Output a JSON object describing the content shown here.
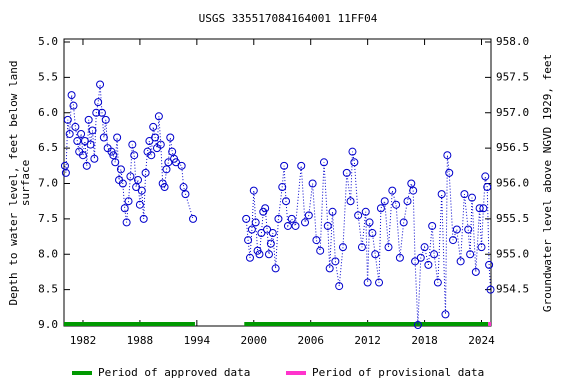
{
  "chart_data": {
    "type": "scatter",
    "title": "USGS 335517084164001 11FF04",
    "ylabel": [
      "Depth to water level, feet below land",
      "surface"
    ],
    "y2label": "Groundwater level above NGVD 1929, feet",
    "color": "#0000cc",
    "marker": "circle",
    "line_style": "dotted",
    "xlim": [
      1980,
      2025
    ],
    "xticks": [
      1982,
      1988,
      1994,
      2000,
      2006,
      2012,
      2018,
      2024
    ],
    "ylim": [
      5,
      9
    ],
    "y_inverted": true,
    "yticks": [
      {
        "value": 5,
        "label": "5.0"
      },
      {
        "value": 5.5,
        "label": "5.5"
      },
      {
        "value": 6,
        "label": "6.0"
      },
      {
        "value": 6.5,
        "label": "6.5"
      },
      {
        "value": 7,
        "label": "7.0"
      },
      {
        "value": 7.5,
        "label": "7.5"
      },
      {
        "value": 8,
        "label": "8.0"
      },
      {
        "value": 8.5,
        "label": "8.5"
      },
      {
        "value": 9,
        "label": "9.0"
      }
    ],
    "y2lim": [
      958,
      954
    ],
    "y2ticks": [
      {
        "value": 958,
        "label": "958.0"
      },
      {
        "value": 957.5,
        "label": "957.5"
      },
      {
        "value": 957,
        "label": "957.0"
      },
      {
        "value": 956.5,
        "label": "956.5"
      },
      {
        "value": 956,
        "label": "956.0"
      },
      {
        "value": 955.5,
        "label": "955.5"
      },
      {
        "value": 955,
        "label": "955.0"
      },
      {
        "value": 954.5,
        "label": "954.5"
      }
    ],
    "x": [
      1980.1,
      1980.2,
      1980.4,
      1980.6,
      1980.8,
      1981.0,
      1981.2,
      1981.4,
      1981.6,
      1981.8,
      1982.0,
      1982.2,
      1982.4,
      1982.6,
      1982.8,
      1983.0,
      1983.2,
      1983.4,
      1983.6,
      1983.8,
      1984.0,
      1984.2,
      1984.4,
      1984.6,
      1985.0,
      1985.2,
      1985.4,
      1985.6,
      1985.8,
      1986.0,
      1986.2,
      1986.4,
      1986.6,
      1986.8,
      1987.0,
      1987.2,
      1987.4,
      1987.6,
      1987.8,
      1988.0,
      1988.2,
      1988.4,
      1988.6,
      1988.8,
      1989.0,
      1989.2,
      1989.4,
      1989.6,
      1989.8,
      1990.0,
      1990.2,
      1990.4,
      1990.6,
      1990.8,
      1991.0,
      1991.2,
      1991.4,
      1991.6,
      1991.8,
      1992.4,
      1992.6,
      1992.8,
      1993.6,
      null,
      1999.2,
      1999.4,
      1999.6,
      1999.8,
      2000.0,
      2000.2,
      2000.4,
      2000.6,
      2000.8,
      2001.0,
      2001.2,
      2001.4,
      2001.6,
      2001.8,
      2002.0,
      2002.3,
      2002.6,
      2003.0,
      2003.2,
      2003.4,
      2003.6,
      2004.0,
      2004.4,
      2005.0,
      2005.4,
      2005.8,
      2006.2,
      2006.6,
      2007.0,
      2007.4,
      2007.8,
      2008.0,
      2008.3,
      2008.6,
      2009.0,
      2009.4,
      2009.8,
      2010.2,
      2010.4,
      2010.6,
      2011.0,
      2011.4,
      2011.8,
      2012.0,
      2012.2,
      2012.5,
      2012.8,
      2013.2,
      2013.4,
      2013.8,
      2014.2,
      2014.6,
      2015.0,
      2015.4,
      2015.8,
      2016.2,
      2016.6,
      2016.8,
      2017.0,
      2017.3,
      2017.6,
      2018.0,
      2018.4,
      2018.8,
      2019.0,
      2019.4,
      2019.8,
      2020.2,
      2020.4,
      2020.6,
      2021.0,
      2021.4,
      2021.8,
      2022.2,
      2022.6,
      2022.8,
      2023.0,
      2023.4,
      2023.8,
      2024.0,
      2024.2,
      2024.4,
      2024.6,
      2024.8,
      2024.95
    ],
    "values": [
      6.75,
      6.85,
      6.1,
      6.3,
      5.75,
      5.9,
      6.2,
      6.4,
      6.55,
      6.3,
      6.6,
      6.4,
      6.75,
      6.1,
      6.45,
      6.25,
      6.65,
      6.0,
      5.85,
      5.6,
      6.0,
      6.35,
      6.1,
      6.5,
      6.55,
      6.6,
      6.7,
      6.35,
      6.95,
      6.8,
      7.0,
      7.35,
      7.55,
      7.25,
      6.9,
      6.45,
      6.6,
      7.05,
      6.95,
      7.3,
      7.1,
      7.5,
      6.85,
      6.55,
      6.4,
      6.6,
      6.2,
      6.35,
      6.5,
      6.05,
      6.45,
      7.0,
      7.05,
      6.8,
      6.7,
      6.35,
      6.55,
      6.65,
      6.7,
      6.75,
      7.05,
      7.15,
      7.5,
      null,
      7.5,
      7.8,
      8.05,
      7.65,
      7.1,
      7.55,
      7.95,
      8.0,
      7.7,
      7.4,
      7.35,
      7.65,
      8.0,
      7.85,
      7.7,
      8.2,
      7.5,
      7.05,
      6.75,
      7.25,
      7.6,
      7.5,
      7.6,
      6.75,
      7.55,
      7.45,
      7.0,
      7.8,
      7.95,
      6.7,
      7.6,
      8.2,
      7.4,
      8.1,
      8.45,
      7.9,
      6.85,
      7.25,
      6.55,
      6.7,
      7.45,
      7.9,
      7.4,
      8.4,
      7.55,
      7.7,
      8.0,
      8.4,
      7.35,
      7.25,
      7.9,
      7.1,
      7.3,
      8.05,
      7.55,
      7.25,
      7.0,
      7.1,
      8.1,
      9.0,
      8.05,
      7.9,
      8.15,
      7.6,
      8.0,
      8.4,
      7.15,
      8.85,
      6.6,
      6.85,
      7.8,
      7.65,
      8.1,
      7.15,
      7.65,
      8.0,
      7.2,
      8.25,
      7.35,
      7.9,
      7.35,
      6.9,
      7.05,
      8.15,
      8.5
    ],
    "periods": [
      {
        "name": "Period of approved data",
        "color": "#009900",
        "ranges": [
          [
            1980,
            1993.8
          ],
          [
            1999,
            2024.7
          ]
        ]
      },
      {
        "name": "Period of provisional data",
        "color": "#ff33cc",
        "ranges": [
          [
            2024.7,
            2025
          ]
        ]
      }
    ]
  }
}
